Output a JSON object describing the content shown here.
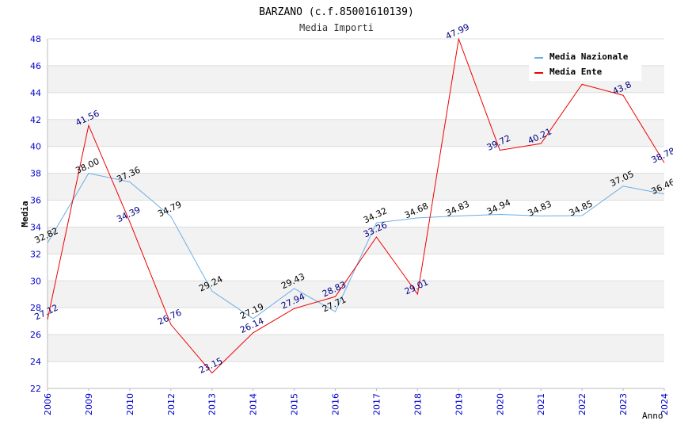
{
  "chart_data": {
    "type": "line",
    "title": "BARZANO (c.f.85001610139)",
    "subtitle": "Media Importi",
    "xlabel": "Anno",
    "ylabel": "Media",
    "ylim": [
      22,
      48
    ],
    "yticks": [
      "22",
      "24",
      "26",
      "28",
      "30",
      "32",
      "34",
      "36",
      "38",
      "40",
      "42",
      "44",
      "46",
      "48"
    ],
    "grid": true,
    "legend_position": "top-right",
    "categories": [
      "2006",
      "2009",
      "2010",
      "2012",
      "2013",
      "2014",
      "2015",
      "2016",
      "2017",
      "2018",
      "2019",
      "2020",
      "2021",
      "2022",
      "2023",
      "2024"
    ],
    "series": [
      {
        "name": "Media Nazionale",
        "color": "#6aaee6",
        "label_color": "#000000",
        "values": [
          32.82,
          38.0,
          37.36,
          34.79,
          29.24,
          27.19,
          29.43,
          27.71,
          34.32,
          34.68,
          34.83,
          34.94,
          34.83,
          34.85,
          37.05,
          36.46
        ],
        "labels": [
          "32.82",
          "38.00",
          "37.36",
          "34.79",
          "29.24",
          "27.19",
          "29.43",
          "27.71",
          "34.32",
          "34.68",
          "34.83",
          "34.94",
          "34.83",
          "34.85",
          "37.05",
          "36.46"
        ]
      },
      {
        "name": "Media Ente",
        "color": "#ee0000",
        "label_color": "#000080",
        "values": [
          27.12,
          41.56,
          34.39,
          26.76,
          23.15,
          26.14,
          27.94,
          28.83,
          33.26,
          29.01,
          47.99,
          39.72,
          40.21,
          44.62,
          43.8,
          38.78
        ],
        "labels": [
          "27.12",
          "41.56",
          "34.39",
          "26.76",
          "23.15",
          "26.14",
          "27.94",
          "28.83",
          "33.26",
          "29.01",
          "47.99",
          "39.72",
          "40.21",
          "",
          "43.8",
          "38.78"
        ]
      }
    ]
  },
  "colors": {
    "axis_tick_label": "#0000cc",
    "band": "#f2f2f2",
    "grid": "#dddddd"
  }
}
